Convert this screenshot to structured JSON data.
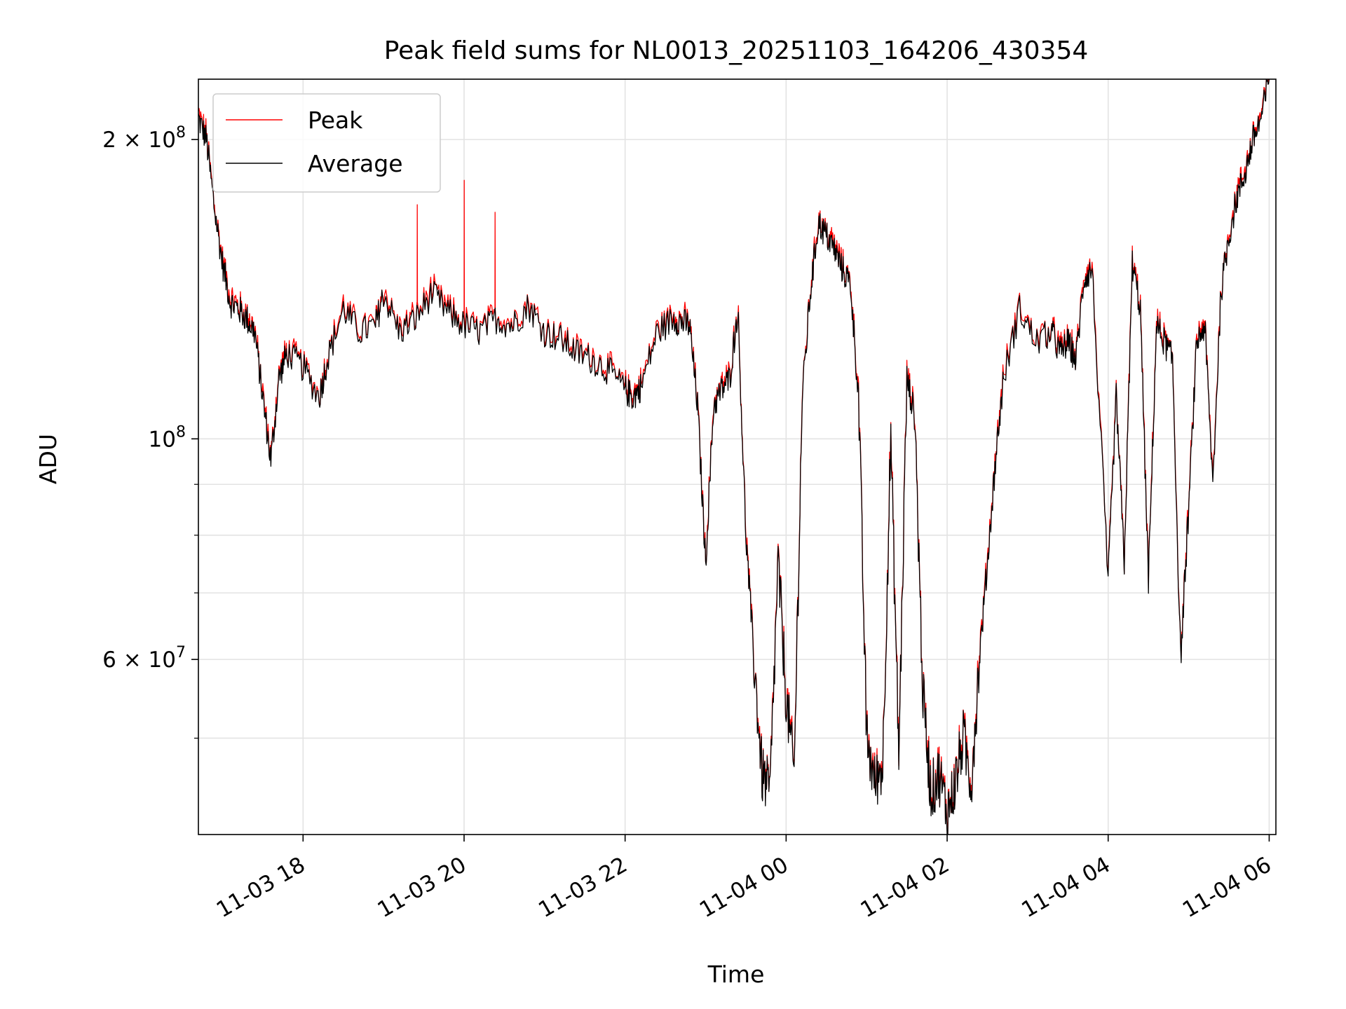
{
  "chart_data": {
    "type": "line",
    "title": "Peak field sums for NL0013_20251103_164206_430354",
    "xlabel": "Time",
    "ylabel": "ADU",
    "yscale": "log",
    "ylim": [
      40000000,
      230000000
    ],
    "xlim_hours_note": "axis spans from about 11-03 16:42 to 11-04 06:05",
    "x_ticks": [
      "11-03 18",
      "11-03 20",
      "11-03 22",
      "11-04 00",
      "11-04 02",
      "11-04 04",
      "11-04 06"
    ],
    "y_ticks": [
      {
        "value": 200000000,
        "mant": "2",
        "exp": "8"
      },
      {
        "value": 100000000,
        "mant": "",
        "exp": "8"
      },
      {
        "value": 60000000,
        "mant": "6",
        "exp": "7"
      }
    ],
    "y_minor_ticks": [
      50000000,
      70000000,
      80000000,
      90000000
    ],
    "grid": true,
    "legend": {
      "position": "upper-left"
    },
    "series": [
      {
        "name": "Peak",
        "color": "#ff0000"
      },
      {
        "name": "Average",
        "color": "#000000"
      }
    ],
    "average_anchor_points": {
      "x": [
        "11-03 16:42",
        "11-03 16:48",
        "11-03 16:54",
        "11-03 17:00",
        "11-03 17:06",
        "11-03 17:12",
        "11-03 17:18",
        "11-03 17:24",
        "11-03 17:30",
        "11-03 17:36",
        "11-03 17:42",
        "11-03 17:48",
        "11-03 18:00",
        "11-03 18:12",
        "11-03 18:18",
        "11-03 18:30",
        "11-03 18:42",
        "11-03 18:54",
        "11-03 19:00",
        "11-03 19:12",
        "11-03 19:24",
        "11-03 19:36",
        "11-03 19:48",
        "11-03 20:00",
        "11-03 20:12",
        "11-03 20:24",
        "11-03 20:36",
        "11-03 20:48",
        "11-03 21:00",
        "11-03 21:12",
        "11-03 21:24",
        "11-03 21:36",
        "11-03 21:48",
        "11-03 22:00",
        "11-03 22:06",
        "11-03 22:12",
        "11-03 22:24",
        "11-03 22:36",
        "11-03 22:42",
        "11-03 22:48",
        "11-03 22:54",
        "11-03 23:00",
        "11-03 23:06",
        "11-03 23:12",
        "11-03 23:18",
        "11-03 23:24",
        "11-03 23:30",
        "11-03 23:36",
        "11-03 23:42",
        "11-03 23:48",
        "11-03 23:54",
        "11-04 00:00",
        "11-04 00:06",
        "11-04 00:12",
        "11-04 00:18",
        "11-04 00:24",
        "11-04 00:30",
        "11-04 00:36",
        "11-04 00:42",
        "11-04 00:48",
        "11-04 00:54",
        "11-04 01:00",
        "11-04 01:06",
        "11-04 01:12",
        "11-04 01:18",
        "11-04 01:24",
        "11-04 01:30",
        "11-04 01:36",
        "11-04 01:42",
        "11-04 01:48",
        "11-04 01:54",
        "11-04 02:00",
        "11-04 02:06",
        "11-04 02:12",
        "11-04 02:18",
        "11-04 02:24",
        "11-04 02:30",
        "11-04 02:36",
        "11-04 02:42",
        "11-04 02:54",
        "11-04 03:06",
        "11-04 03:18",
        "11-04 03:24",
        "11-04 03:30",
        "11-04 03:36",
        "11-04 03:42",
        "11-04 03:48",
        "11-04 04:00",
        "11-04 04:06",
        "11-04 04:12",
        "11-04 04:18",
        "11-04 04:24",
        "11-04 04:30",
        "11-04 04:36",
        "11-04 04:42",
        "11-04 04:48",
        "11-04 04:54",
        "11-04 05:00",
        "11-04 05:06",
        "11-04 05:12",
        "11-04 05:18",
        "11-04 05:24",
        "11-04 05:30",
        "11-04 05:36",
        "11-04 05:42",
        "11-04 05:48",
        "11-04 05:54",
        "11-04 06:00"
      ],
      "y": [
        210000000,
        200000000,
        170000000,
        150000000,
        137000000,
        135000000,
        132000000,
        128000000,
        110000000,
        95000000,
        115000000,
        122000000,
        118000000,
        110000000,
        120000000,
        135000000,
        128000000,
        130000000,
        140000000,
        128000000,
        132000000,
        140000000,
        134000000,
        130000000,
        128000000,
        132000000,
        130000000,
        136000000,
        128000000,
        126000000,
        122000000,
        120000000,
        117000000,
        112000000,
        110000000,
        113000000,
        128000000,
        132000000,
        131000000,
        130000000,
        108000000,
        75000000,
        108000000,
        112000000,
        115000000,
        135000000,
        80000000,
        60000000,
        46000000,
        44000000,
        75000000,
        55000000,
        46000000,
        110000000,
        140000000,
        165000000,
        160000000,
        155000000,
        148000000,
        143000000,
        110000000,
        50000000,
        45000000,
        47000000,
        100000000,
        48000000,
        115000000,
        105000000,
        55000000,
        44000000,
        46000000,
        42000000,
        45000000,
        50000000,
        45000000,
        60000000,
        75000000,
        95000000,
        115000000,
        135000000,
        125000000,
        128000000,
        122000000,
        125000000,
        120000000,
        145000000,
        148000000,
        72000000,
        110000000,
        75000000,
        150000000,
        135000000,
        72000000,
        130000000,
        125000000,
        120000000,
        60000000,
        85000000,
        125000000,
        130000000,
        90000000,
        140000000,
        160000000,
        175000000,
        185000000,
        200000000,
        210000000,
        230000000
      ]
    },
    "peak_spikes": {
      "x": [
        "11-03 19:25",
        "11-03 20:00",
        "11-03 20:23"
      ],
      "y": [
        172000000,
        182000000,
        169000000
      ]
    }
  }
}
